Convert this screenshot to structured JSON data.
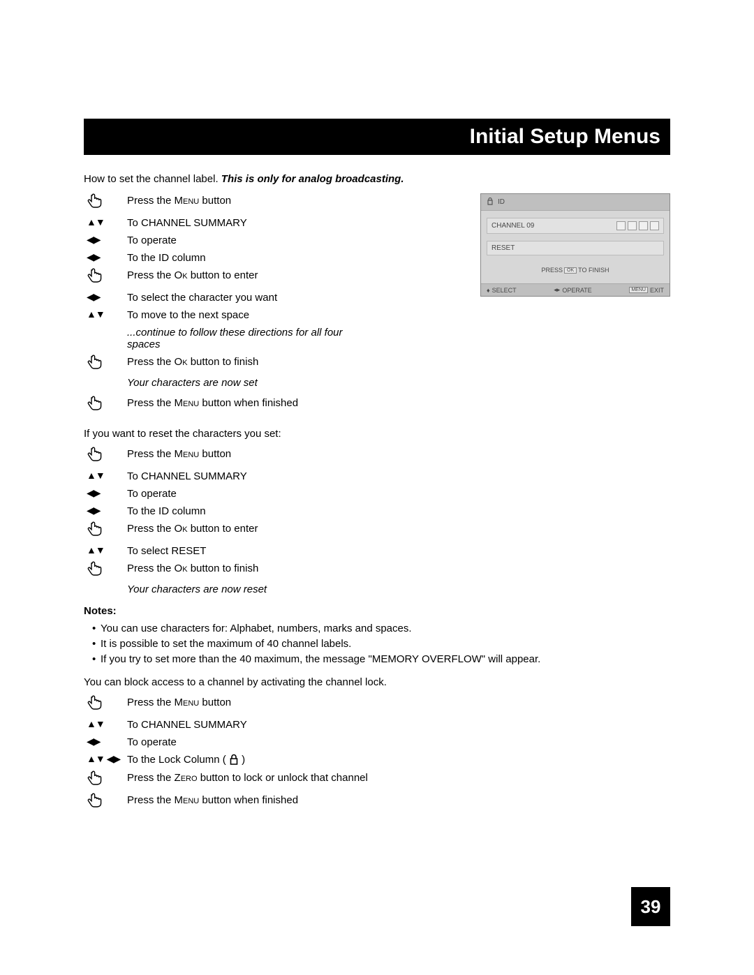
{
  "title": "Initial Setup Menus",
  "pageNumber": "39",
  "intro": {
    "prefix": "How to set the channel label.  ",
    "italic": "This is only for analog broadcasting."
  },
  "buttons": {
    "menu": "Menu",
    "ok": "Ok",
    "zero": "Zero"
  },
  "stepsA": [
    {
      "icon": "hand",
      "text_pre": "Press the ",
      "btn": "Menu",
      "text_post": " button"
    },
    {
      "icon": "ud",
      "text": "To CHANNEL SUMMARY"
    },
    {
      "icon": "lr",
      "text": "To operate"
    },
    {
      "icon": "lr",
      "text": "To the ID column"
    },
    {
      "icon": "hand",
      "text_pre": "Press the ",
      "btn": "Ok",
      "text_post": " button to enter"
    },
    {
      "icon": "lr",
      "text": "To select the character you want"
    },
    {
      "icon": "ud",
      "text": "To move to the next space"
    }
  ],
  "italicA1": "...continue to follow these directions for all four spaces",
  "stepsA2": [
    {
      "icon": "hand",
      "text_pre": "Press the ",
      "btn": "Ok",
      "text_post": " button to finish"
    }
  ],
  "italicA2": "Your characters are now set",
  "stepsA3": [
    {
      "icon": "hand",
      "text_pre": "Press the ",
      "btn": "Menu",
      "text_post": " button when finished"
    }
  ],
  "resetIntro": "If you want to reset the characters you set:",
  "stepsB": [
    {
      "icon": "hand",
      "text_pre": "Press the ",
      "btn": "Menu",
      "text_post": " button"
    },
    {
      "icon": "ud",
      "text": "To CHANNEL SUMMARY"
    },
    {
      "icon": "lr",
      "text": "To operate"
    },
    {
      "icon": "lr",
      "text": "To the ID column"
    },
    {
      "icon": "hand",
      "text_pre": "Press the ",
      "btn": "Ok",
      "text_post": " button to enter"
    },
    {
      "icon": "ud",
      "text": "To select RESET"
    },
    {
      "icon": "hand",
      "text_pre": "Press the ",
      "btn": "Ok",
      "text_post": " button to finish"
    }
  ],
  "italicB": "Your characters are now reset",
  "notesHead": "Notes:",
  "notes": [
    "You can use characters for: Alphabet, numbers, marks and spaces.",
    "It is possible to set the maximum of 40 channel labels.",
    "If you try to set more than the 40 maximum, the message \"MEMORY OVERFLOW\" will appear."
  ],
  "lockIntro": "You can block access to a channel by activating the channel lock.",
  "stepsC": [
    {
      "icon": "hand",
      "text_pre": "Press the ",
      "btn": "Menu",
      "text_post": " button"
    },
    {
      "icon": "ud",
      "text": "To CHANNEL SUMMARY"
    },
    {
      "icon": "lr",
      "text": "To operate"
    },
    {
      "icon": "udlr",
      "text_pre": "To the Lock Column ( ",
      "lock": true,
      "text_post": " )"
    },
    {
      "icon": "hand",
      "text_pre": "Press the ",
      "btn": "Zero",
      "text_post": " button to lock or unlock that channel"
    },
    {
      "icon": "hand",
      "text_pre": "Press the ",
      "btn": "Menu",
      "text_post": " button when finished"
    }
  ],
  "osd": {
    "header": "ID",
    "channel": "CHANNEL 09",
    "reset": "RESET",
    "press_pre": "PRESS",
    "press_ok": "OK",
    "press_post": "TO FINISH",
    "footer": {
      "select": "SELECT",
      "operate": "OPERATE",
      "exit": "EXIT",
      "menu": "MENU"
    }
  },
  "colors": {
    "black": "#000000",
    "white": "#ffffff",
    "osdBg": "#d7d7d7",
    "osdHeader": "#bfbfbf",
    "osdText": "#484848"
  }
}
